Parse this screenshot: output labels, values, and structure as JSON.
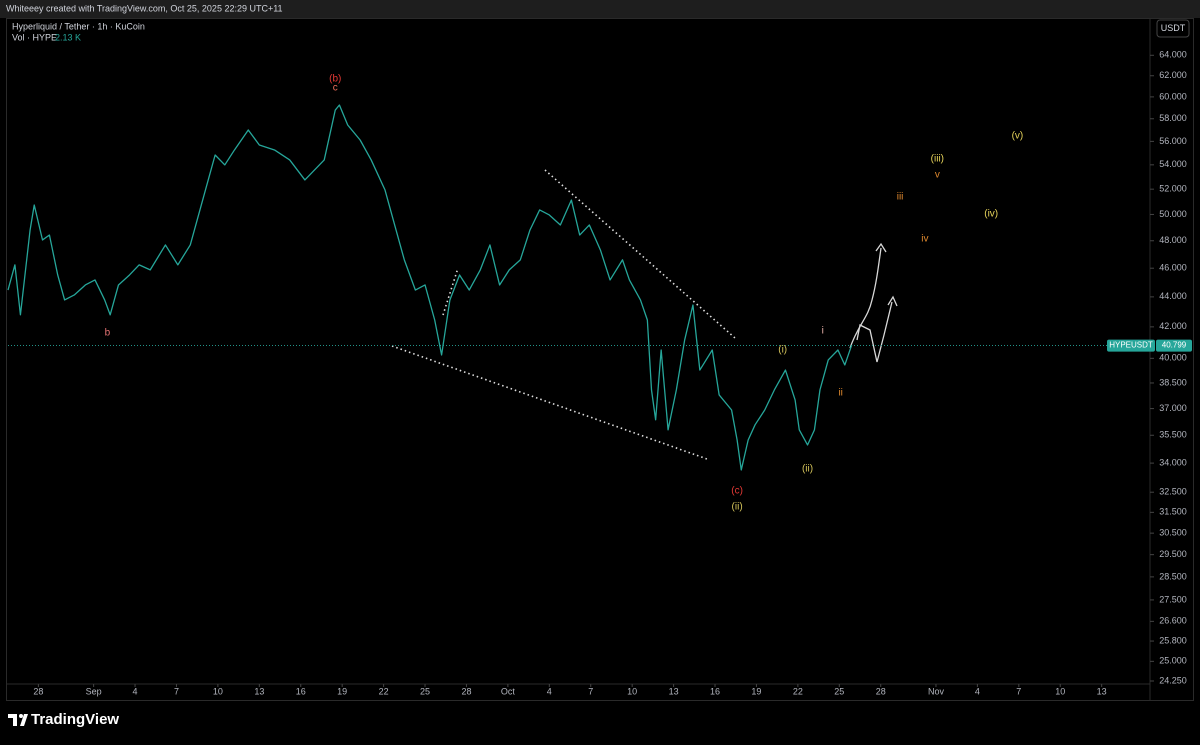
{
  "header": {
    "attribution": "Whiteeey created with TradingView.com, Oct 25, 2025 22:29 UTC+11",
    "symbol": "Hyperliquid / Tether · 1h · KuCoin",
    "volume_label": "Vol · HYPE",
    "volume_value": "2.13 K",
    "currency": "USDT",
    "logo": "TradingView"
  },
  "chart_data": {
    "type": "line",
    "color": "#26a69a",
    "log_scale": true,
    "grid": false,
    "x": [
      -2.2,
      -1.7,
      -1.3,
      -0.6,
      -0.3,
      0.3,
      0.8,
      1.4,
      1.9,
      2.6,
      3.4,
      4.1,
      4.8,
      5.2,
      5.8,
      6.6,
      7.3,
      8.1,
      9.2,
      10.1,
      11.0,
      11.7,
      12.4,
      12.8,
      13.5,
      14.2,
      15.2,
      16.0,
      17.1,
      18.2,
      19.3,
      20.0,
      20.7,
      21.5,
      21.8,
      22.4,
      23.3,
      24.1,
      25.1,
      25.8,
      26.5,
      27.3,
      28.0,
      28.7,
      29.2,
      29.8,
      30.5,
      31.2,
      32.0,
      32.7,
      33.4,
      34.1,
      34.9,
      35.6,
      36.3,
      37.0,
      37.8,
      38.6,
      39.2,
      39.9,
      40.7,
      41.4,
      42.3,
      42.8,
      43.6,
      44.1,
      44.4,
      44.7,
      45.1,
      45.6,
      46.2,
      46.8,
      47.4,
      47.9,
      48.8,
      49.3,
      50.2,
      50.6,
      50.9,
      51.4,
      51.9,
      52.6,
      53.3,
      54.1,
      54.8,
      55.1,
      55.7,
      56.2,
      56.6,
      57.2,
      57.9,
      58.4,
      58.9
    ],
    "series": [
      {
        "name": "HYPEUSDT",
        "values": [
          44.47,
          46.24,
          42.79,
          48.81,
          50.74,
          48.06,
          48.43,
          45.52,
          43.79,
          44.13,
          44.82,
          45.17,
          43.79,
          42.79,
          44.82,
          45.52,
          46.24,
          45.88,
          47.69,
          46.24,
          47.69,
          50.35,
          53.16,
          54.83,
          53.99,
          55.26,
          57.0,
          55.69,
          55.26,
          54.41,
          52.75,
          53.57,
          54.41,
          58.79,
          59.25,
          57.44,
          56.12,
          54.41,
          51.94,
          49.19,
          46.6,
          44.47,
          44.82,
          42.45,
          40.21,
          43.79,
          45.52,
          44.47,
          45.88,
          47.69,
          44.82,
          45.88,
          46.6,
          48.81,
          50.35,
          49.96,
          49.19,
          51.13,
          48.43,
          49.19,
          47.32,
          45.17,
          46.6,
          45.17,
          43.79,
          42.45,
          38.09,
          36.36,
          40.52,
          35.8,
          38.09,
          41.15,
          43.45,
          39.28,
          40.52,
          37.79,
          36.92,
          35.24,
          33.64,
          35.24,
          36.08,
          36.92,
          38.09,
          39.28,
          37.5,
          35.8,
          34.97,
          35.8,
          38.09,
          39.9,
          40.52,
          39.59,
          40.84
        ]
      }
    ],
    "last_price": 40.799,
    "xlim": [
      -2.2,
      80.5
    ],
    "xticks": [
      {
        "value": 0,
        "label": "28"
      },
      {
        "value": 4,
        "label": "Sep"
      },
      {
        "value": 7,
        "label": "4"
      },
      {
        "value": 10,
        "label": "7"
      },
      {
        "value": 13,
        "label": "10"
      },
      {
        "value": 16,
        "label": "13"
      },
      {
        "value": 19,
        "label": "16"
      },
      {
        "value": 22,
        "label": "19"
      },
      {
        "value": 25,
        "label": "22"
      },
      {
        "value": 28,
        "label": "25"
      },
      {
        "value": 31,
        "label": "28"
      },
      {
        "value": 34,
        "label": "Oct"
      },
      {
        "value": 37,
        "label": "4"
      },
      {
        "value": 40,
        "label": "7"
      },
      {
        "value": 43,
        "label": "10"
      },
      {
        "value": 46,
        "label": "13"
      },
      {
        "value": 49,
        "label": "16"
      },
      {
        "value": 52,
        "label": "19"
      },
      {
        "value": 55,
        "label": "22"
      },
      {
        "value": 58,
        "label": "25"
      },
      {
        "value": 61,
        "label": "28"
      },
      {
        "value": 65,
        "label": "Nov"
      },
      {
        "value": 68,
        "label": "4"
      },
      {
        "value": 71,
        "label": "7"
      },
      {
        "value": 74,
        "label": "10"
      },
      {
        "value": 77,
        "label": "13"
      }
    ],
    "ylim": [
      24.1,
      67.6
    ],
    "yticks": [
      {
        "value": 64,
        "label": "64.000"
      },
      {
        "value": 62,
        "label": "62.000"
      },
      {
        "value": 60,
        "label": "60.000"
      },
      {
        "value": 58,
        "label": "58.000"
      },
      {
        "value": 56,
        "label": "56.000"
      },
      {
        "value": 54,
        "label": "54.000"
      },
      {
        "value": 52,
        "label": "52.000"
      },
      {
        "value": 50,
        "label": "50.000"
      },
      {
        "value": 48,
        "label": "48.000"
      },
      {
        "value": 46,
        "label": "46.000"
      },
      {
        "value": 44,
        "label": "44.000"
      },
      {
        "value": 42,
        "label": "42.000"
      },
      {
        "value": 40,
        "label": "40.000"
      },
      {
        "value": 38.5,
        "label": "38.500"
      },
      {
        "value": 37,
        "label": "37.000"
      },
      {
        "value": 35.5,
        "label": "35.500"
      },
      {
        "value": 34,
        "label": "34.000"
      },
      {
        "value": 32.5,
        "label": "32.500"
      },
      {
        "value": 31.5,
        "label": "31.500"
      },
      {
        "value": 30.5,
        "label": "30.500"
      },
      {
        "value": 29.5,
        "label": "29.500"
      },
      {
        "value": 28.5,
        "label": "28.500"
      },
      {
        "value": 27.5,
        "label": "27.500"
      },
      {
        "value": 26.6,
        "label": "26.600"
      },
      {
        "value": 25.8,
        "label": "25.800"
      },
      {
        "value": 25,
        "label": "25.000"
      },
      {
        "value": 24.25,
        "label": "24.250"
      }
    ],
    "annotations": [
      {
        "text": "(b)",
        "x": 21.5,
        "y": 61.69,
        "color": "#e53935"
      },
      {
        "text": "c",
        "x": 21.5,
        "y": 60.83,
        "color": "#ef6c5a"
      },
      {
        "text": "b",
        "x": 5.0,
        "y": 41.6,
        "color": "#e57373"
      },
      {
        "text": "(c)",
        "x": 50.6,
        "y": 32.56,
        "color": "#e53935"
      },
      {
        "text": "(ii)",
        "x": 50.6,
        "y": 31.77,
        "color": "#d4c35a"
      },
      {
        "text": "(i)",
        "x": 53.9,
        "y": 40.52,
        "color": "#d4c35a"
      },
      {
        "text": "(ii)",
        "x": 55.7,
        "y": 33.69,
        "color": "#d4c35a"
      },
      {
        "text": "i",
        "x": 56.8,
        "y": 41.73,
        "color": "#e8b0a8"
      },
      {
        "text": "ii",
        "x": 58.1,
        "y": 37.9,
        "color": "#e0892e"
      },
      {
        "text": "iii",
        "x": 62.4,
        "y": 51.38,
        "color": "#e0892e"
      },
      {
        "text": "iv",
        "x": 64.2,
        "y": 48.13,
        "color": "#e0892e"
      },
      {
        "text": "(iii)",
        "x": 65.1,
        "y": 54.49,
        "color": "#e6d35a"
      },
      {
        "text": "v",
        "x": 65.1,
        "y": 53.16,
        "color": "#e0892e"
      },
      {
        "text": "(iv)",
        "x": 69.0,
        "y": 50.04,
        "color": "#e6d35a"
      },
      {
        "text": "(v)",
        "x": 70.9,
        "y": 56.47,
        "color": "#e6d35a"
      }
    ]
  }
}
